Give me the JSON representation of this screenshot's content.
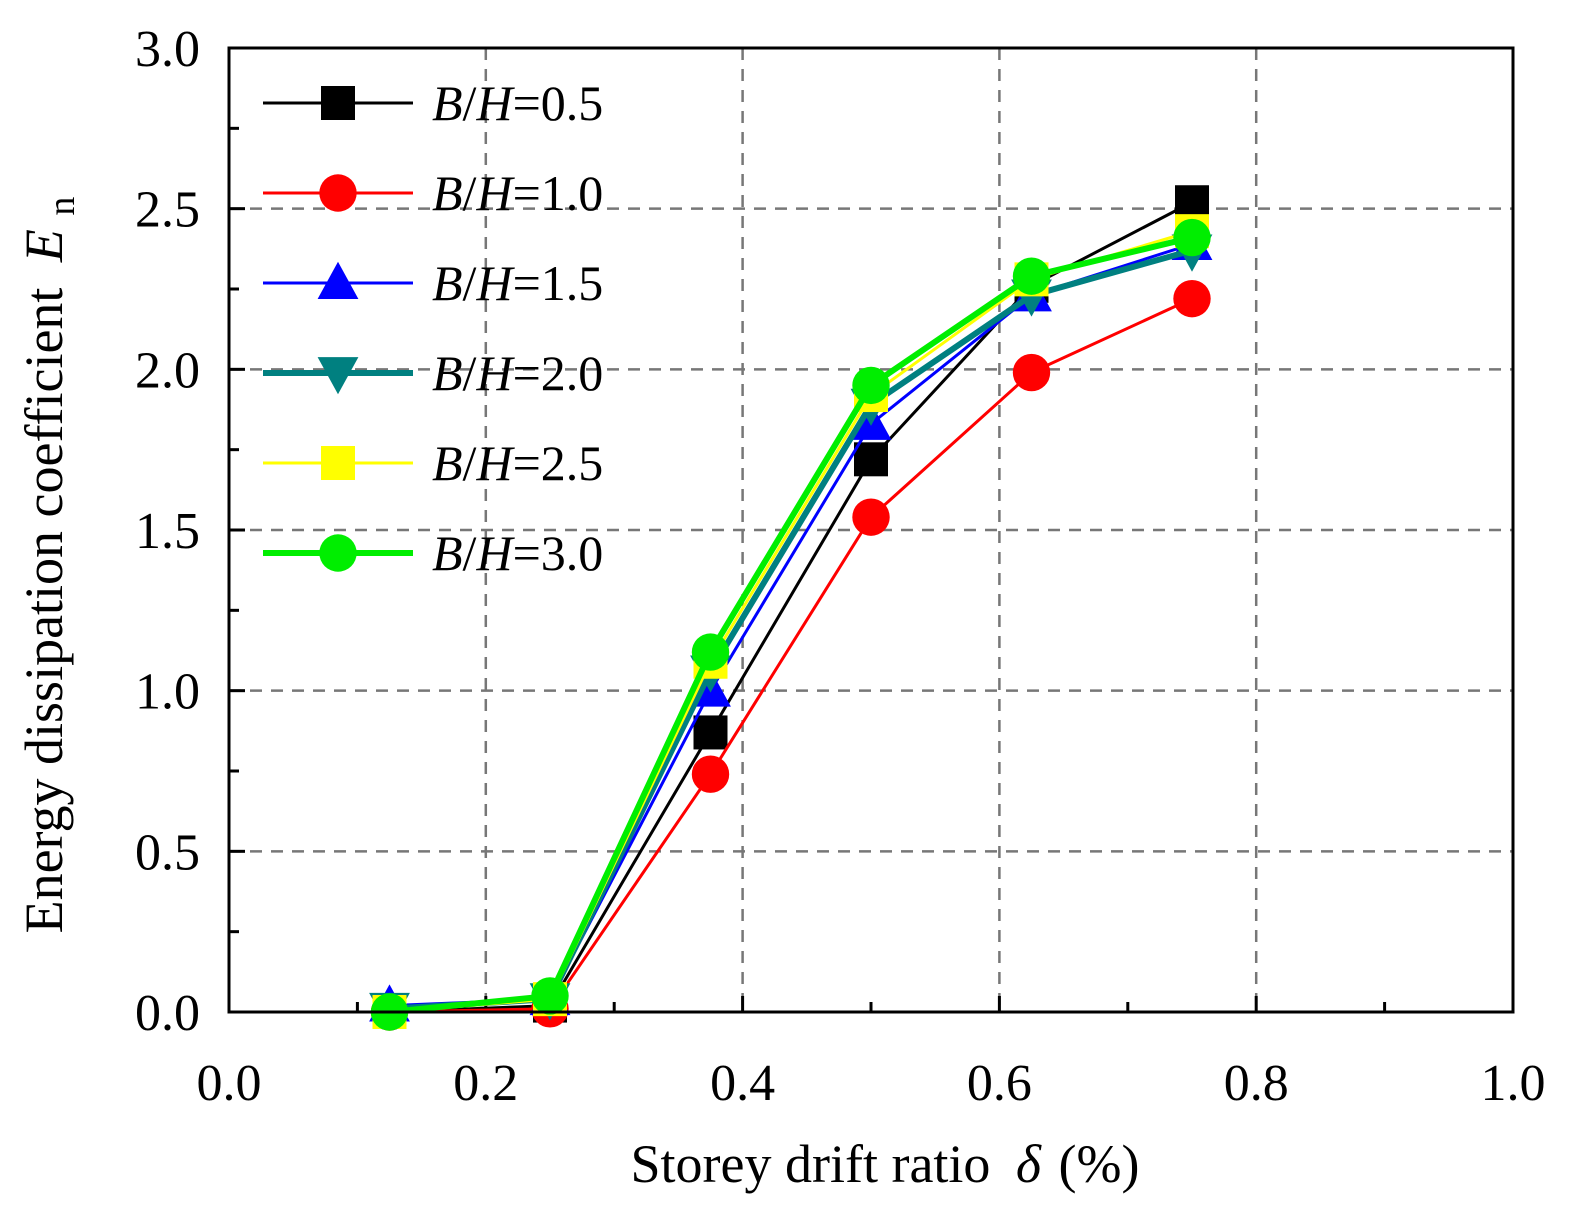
{
  "chart_data": {
    "type": "line",
    "title": "",
    "xlabel": {
      "text": "Storey drift ratio",
      "symbol": "δ",
      "unit": "(%)"
    },
    "ylabel": {
      "text": "Energy dissipation coefficient",
      "symbol": "E",
      "subscript": "n"
    },
    "xlim": [
      0.0,
      1.0
    ],
    "ylim": [
      0.0,
      3.0
    ],
    "xticks": [
      0.0,
      0.2,
      0.4,
      0.6,
      0.8,
      1.0
    ],
    "yticks": [
      0.0,
      0.5,
      1.0,
      1.5,
      2.0,
      2.5,
      3.0
    ],
    "xtick_labels": [
      "0.0",
      "0.2",
      "0.4",
      "0.6",
      "0.8",
      "1.0"
    ],
    "ytick_labels": [
      "0.0",
      "0.5",
      "1.0",
      "1.5",
      "2.0",
      "2.5",
      "3.0"
    ],
    "grid": true,
    "legend_position": "top-left",
    "series": [
      {
        "name": "B/H=0.5",
        "prefix": "B",
        "mid": "H",
        "value_text": "=0.5",
        "color": "#000000",
        "marker": "square",
        "x": [
          0.125,
          0.25,
          0.375,
          0.5,
          0.625,
          0.75
        ],
        "values": [
          0.0,
          0.02,
          0.87,
          1.72,
          2.26,
          2.52
        ]
      },
      {
        "name": "B/H=1.0",
        "prefix": "B",
        "mid": "H",
        "value_text": "=1.0",
        "color": "#ff0000",
        "marker": "circle",
        "x": [
          0.125,
          0.25,
          0.375,
          0.5,
          0.625,
          0.75
        ],
        "values": [
          0.0,
          0.01,
          0.74,
          1.54,
          1.99,
          2.22
        ]
      },
      {
        "name": "B/H=1.5",
        "prefix": "B",
        "mid": "H",
        "value_text": "=1.5",
        "color": "#0000ff",
        "marker": "triangle-up",
        "x": [
          0.125,
          0.25,
          0.375,
          0.5,
          0.625,
          0.75
        ],
        "values": [
          0.02,
          0.04,
          1.0,
          1.83,
          2.23,
          2.39
        ]
      },
      {
        "name": "B/H=2.0",
        "prefix": "B",
        "mid": "H",
        "value_text": "=2.0",
        "color": "#008080",
        "marker": "triangle-down",
        "x": [
          0.125,
          0.25,
          0.375,
          0.5,
          0.625,
          0.75
        ],
        "values": [
          0.01,
          0.04,
          1.06,
          1.89,
          2.23,
          2.37
        ]
      },
      {
        "name": "B/H=2.5",
        "prefix": "B",
        "mid": "H",
        "value_text": "=2.5",
        "color": "#ffff00",
        "marker": "square",
        "x": [
          0.125,
          0.25,
          0.375,
          0.5,
          0.625,
          0.75
        ],
        "values": [
          0.0,
          0.04,
          1.09,
          1.92,
          2.28,
          2.43
        ]
      },
      {
        "name": "B/H=3.0",
        "prefix": "B",
        "mid": "H",
        "value_text": "=3.0",
        "color": "#00ee00",
        "marker": "circle",
        "x": [
          0.125,
          0.25,
          0.375,
          0.5,
          0.625,
          0.75
        ],
        "values": [
          0.0,
          0.05,
          1.12,
          1.95,
          2.29,
          2.41
        ]
      }
    ]
  }
}
